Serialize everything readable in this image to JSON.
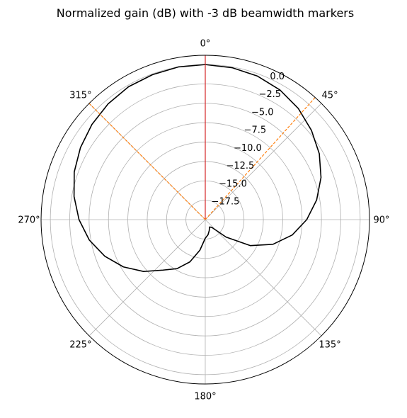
{
  "chart_data": {
    "type": "line",
    "projection": "polar",
    "title": "Normalized gain (dB) with -3 dB beamwidth markers",
    "theta_zero_location": "top",
    "theta_direction": "clockwise",
    "angle_ticks_deg": [
      0,
      45,
      90,
      135,
      180,
      225,
      270,
      315
    ],
    "angle_tick_labels": [
      "0°",
      "45°",
      "90°",
      "135°",
      "180°",
      "225°",
      "270°",
      "315°"
    ],
    "radial_range_db": [
      -20,
      1.2
    ],
    "radial_ticks": [
      -17.5,
      -15.0,
      -12.5,
      -10.0,
      -7.5,
      -5.0,
      -2.5,
      0.0
    ],
    "radial_tick_labels": [
      "−17.5",
      "−15.0",
      "−12.5",
      "−10.0",
      "−7.5",
      "−5.0",
      "−2.5",
      "0.0"
    ],
    "grid": true,
    "series": [
      {
        "role": "gain-pattern",
        "color": "#000000",
        "theta_deg": [
          0,
          10,
          20,
          30,
          40,
          50,
          60,
          70,
          80,
          90,
          100,
          110,
          120,
          130,
          140,
          150,
          160,
          170,
          180,
          190,
          200,
          210,
          220,
          230,
          240,
          250,
          260,
          270,
          280,
          290,
          300,
          310,
          320,
          330,
          340,
          350,
          360
        ],
        "gain_db": [
          0.0,
          -0.1,
          -0.3,
          -0.7,
          -1.3,
          -2.1,
          -3.0,
          -4.1,
          -5.4,
          -6.9,
          -8.6,
          -10.7,
          -13.3,
          -16.5,
          -18.7,
          -18.9,
          -18.5,
          -18.0,
          -17.6,
          -16.0,
          -14.2,
          -12.7,
          -11.5,
          -9.6,
          -7.8,
          -6.2,
          -4.8,
          -3.7,
          -2.8,
          -2.0,
          -1.4,
          -0.9,
          -0.5,
          -0.2,
          -0.1,
          0.0,
          0.0
        ]
      },
      {
        "role": "main-lobe-direction",
        "color": "#d62728",
        "theta_deg": [
          0,
          0
        ],
        "gain_db": [
          -20,
          1.2
        ]
      },
      {
        "role": "-3 dB marker",
        "color": "#ff7f0e",
        "dashed": true,
        "theta_deg": [
          42,
          42
        ],
        "gain_db": [
          -20,
          1.2
        ]
      },
      {
        "role": "-3 dB marker",
        "color": "#ff7f0e",
        "dashed": true,
        "theta_deg": [
          315,
          315
        ],
        "gain_db": [
          -20,
          1.2
        ]
      }
    ]
  }
}
